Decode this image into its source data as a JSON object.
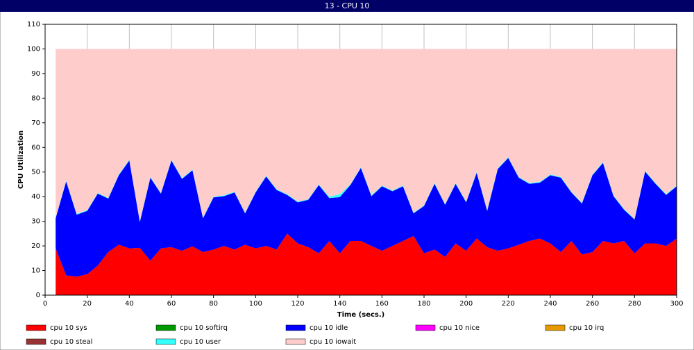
{
  "window_title": "13 - CPU 10",
  "chart_data": {
    "type": "stacked_area",
    "xlabel": "Time (secs.)",
    "ylabel": "CPU Utilization",
    "x": [
      5,
      10,
      15,
      20,
      25,
      30,
      35,
      40,
      45,
      50,
      55,
      60,
      65,
      70,
      75,
      80,
      85,
      90,
      95,
      100,
      105,
      110,
      115,
      120,
      125,
      130,
      135,
      140,
      145,
      150,
      155,
      160,
      165,
      170,
      175,
      180,
      185,
      190,
      195,
      200,
      205,
      210,
      215,
      220,
      225,
      230,
      235,
      240,
      245,
      250,
      255,
      260,
      265,
      270,
      275,
      280,
      285,
      290,
      295,
      300
    ],
    "series": [
      {
        "name": "cpu 10 sys",
        "color": "#ff0000",
        "values": [
          19,
          8,
          7.5,
          8.5,
          12,
          17.5,
          20.5,
          19,
          19.2,
          14,
          19,
          19.5,
          18,
          19.8,
          17.5,
          18.5,
          20,
          18.5,
          20.5,
          19,
          20,
          18.5,
          25,
          21,
          19.5,
          17,
          22,
          17,
          22,
          22,
          20,
          18,
          20,
          22,
          24,
          17,
          18.5,
          15.5,
          21,
          18,
          23,
          19.5,
          18,
          19,
          20.5,
          22,
          23,
          21,
          17.5,
          22,
          16.5,
          17.5,
          22,
          21,
          22,
          17,
          21,
          21,
          20,
          23
        ]
      },
      {
        "name": "cpu 10 softirq",
        "color": "#009900",
        "values": [
          0,
          0,
          0,
          0,
          0,
          0,
          0,
          0,
          0,
          0,
          0,
          0,
          0,
          0,
          0,
          0,
          0,
          0,
          0,
          0,
          0,
          0,
          0,
          0,
          0,
          0,
          0,
          0,
          0,
          0,
          0,
          0,
          0,
          0,
          0,
          0,
          0,
          0,
          0,
          0,
          0,
          0,
          0,
          0,
          0,
          0,
          0,
          0,
          0,
          0,
          0,
          0,
          0,
          0,
          0,
          0,
          0,
          0,
          0,
          0
        ]
      },
      {
        "name": "cpu 10 idle",
        "color": "#0000ff",
        "values": [
          12.2,
          38.2,
          25.2,
          25.7,
          29.2,
          21.7,
          28.2,
          35.7,
          10.5,
          33.7,
          22.2,
          35.2,
          29.2,
          30.9,
          13.7,
          21.2,
          20.2,
          23.2,
          12.7,
          22.7,
          28.2,
          24.2,
          15.7,
          16.7,
          19.2,
          27.7,
          17.4,
          22.8,
          22.7,
          29.7,
          20.2,
          26.2,
          22.2,
          22.2,
          9.2,
          19.2,
          26.7,
          21.2,
          24.2,
          19.7,
          26.7,
          14.7,
          33.2,
          36.7,
          27.2,
          23.2,
          22.7,
          27.7,
          30.2,
          19.7,
          20.7,
          31.2,
          31.7,
          19.2,
          12.7,
          13.7,
          29.2,
          24.2,
          20.7,
          21.2
        ]
      },
      {
        "name": "cpu 10 nice",
        "color": "#ff00ff",
        "values": [
          0,
          0,
          0,
          0,
          0,
          0,
          0,
          0,
          0,
          0,
          0,
          0,
          0,
          0,
          0,
          0,
          0,
          0,
          0,
          0,
          0,
          0,
          0,
          0,
          0,
          0,
          0,
          0,
          0,
          0,
          0,
          0,
          0,
          0,
          0,
          0,
          0,
          0,
          0,
          0,
          0,
          0,
          0,
          0,
          0,
          0,
          0,
          0,
          0,
          0,
          0,
          0,
          0,
          0,
          0,
          0,
          0,
          0,
          0,
          0
        ]
      },
      {
        "name": "cpu 10 irq",
        "color": "#e69900",
        "values": [
          0,
          0,
          0,
          0,
          0,
          0,
          0,
          0,
          0,
          0,
          0,
          0,
          0,
          0,
          0,
          0,
          0,
          0,
          0,
          0,
          0,
          0,
          0,
          0,
          0,
          0,
          0,
          0,
          0,
          0,
          0,
          0,
          0,
          0,
          0,
          0,
          0,
          0,
          0,
          0,
          0,
          0,
          0,
          0,
          0,
          0,
          0,
          0,
          0,
          0,
          0,
          0,
          0,
          0,
          0,
          0,
          0,
          0,
          0,
          0
        ]
      },
      {
        "name": "cpu 10 steal",
        "color": "#993333",
        "values": [
          0,
          0,
          0,
          0,
          0,
          0,
          0,
          0,
          0,
          0,
          0,
          0,
          0,
          0,
          0,
          0,
          0,
          0,
          0,
          0,
          0,
          0,
          0,
          0,
          0,
          0,
          0,
          0,
          0,
          0,
          0,
          0,
          0,
          0,
          0,
          0,
          0,
          0,
          0,
          0,
          0,
          0,
          0,
          0,
          0,
          0,
          0,
          0,
          0,
          0,
          0,
          0,
          0,
          0,
          0,
          0,
          0,
          0,
          0,
          0
        ]
      },
      {
        "name": "cpu 10 user",
        "color": "#33ffff",
        "values": [
          0.3,
          0.3,
          0.3,
          0.3,
          0.3,
          0.3,
          0.3,
          0.3,
          0.3,
          0.3,
          0.3,
          0.3,
          0.3,
          0.3,
          0.3,
          0.3,
          0.3,
          0.3,
          0.3,
          0.3,
          0.3,
          0.3,
          0.3,
          0.3,
          0.3,
          0.3,
          0.6,
          1.2,
          0.3,
          0.3,
          0.3,
          0.3,
          0.3,
          0.3,
          0.3,
          0.3,
          0.3,
          0.3,
          0.3,
          0.3,
          0.3,
          0.3,
          0.3,
          0.3,
          0.3,
          0.3,
          0.3,
          0.3,
          0.3,
          0.3,
          0.3,
          0.3,
          0.3,
          0.3,
          0.3,
          0.3,
          0.3,
          0.3,
          0.3,
          0.3
        ]
      },
      {
        "name": "cpu 10 iowait",
        "color": "#ffcccc",
        "values": [
          68.5,
          53.5,
          67,
          65.5,
          58.5,
          60.5,
          51,
          45,
          70,
          52,
          58.5,
          45,
          52.5,
          49,
          68.5,
          60,
          59.5,
          58,
          66.5,
          58,
          51.5,
          57,
          59,
          62,
          61,
          55,
          60,
          59,
          55,
          48,
          59.5,
          55.5,
          57.5,
          55.5,
          66.5,
          63.5,
          54.5,
          63,
          54.5,
          62,
          50,
          65.5,
          48.5,
          44,
          52,
          54.5,
          54,
          51,
          52,
          58,
          62.5,
          51,
          46,
          59.5,
          65,
          69,
          49.5,
          54.5,
          59,
          55.5
        ]
      }
    ],
    "xlim": [
      0,
      300
    ],
    "xticks": [
      0,
      20,
      40,
      60,
      80,
      100,
      120,
      140,
      160,
      180,
      200,
      220,
      240,
      260,
      280,
      300
    ],
    "ylim": [
      0,
      110
    ],
    "yticks": [
      0,
      10,
      20,
      30,
      40,
      50,
      60,
      70,
      80,
      90,
      100,
      110
    ],
    "grid": true
  }
}
